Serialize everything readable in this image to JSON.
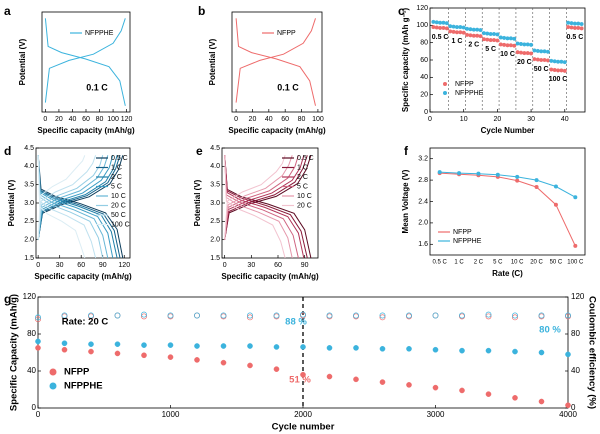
{
  "chart_data": [
    {
      "panel_label": "a",
      "type": "line",
      "xlabel": "Specific capacity (mAh/g)",
      "ylabel": "Potential (V)",
      "xlim": [
        -5,
        125
      ],
      "ylim": [
        1.3,
        4.5
      ],
      "xticks": [
        0,
        20,
        40,
        60,
        80,
        100,
        120
      ],
      "annotations": [
        {
          "text": "0.1 C"
        }
      ],
      "series": [
        {
          "name": "NFPPHE",
          "color": "#3bb3dd",
          "x": [
            0,
            6,
            35,
            71,
            100,
            112,
            118,
            null,
            0,
            4,
            24,
            59,
            94,
            110,
            118
          ],
          "values": [
            1.6,
            2.7,
            2.95,
            3.15,
            3.5,
            3.9,
            4.3,
            null,
            4.3,
            3.4,
            3.2,
            3.0,
            2.75,
            2.3,
            1.5
          ]
        }
      ]
    },
    {
      "panel_label": "b",
      "type": "line",
      "xlabel": "Specific capacity (mAh/g)",
      "ylabel": "Potential (V)",
      "xlim": [
        -5,
        105
      ],
      "ylim": [
        1.3,
        4.5
      ],
      "xticks": [
        0,
        20,
        40,
        60,
        80,
        100
      ],
      "annotations": [
        {
          "text": "0.1 C"
        }
      ],
      "series": [
        {
          "name": "NFPP",
          "color": "#ee6b6b",
          "x": [
            0,
            5,
            29,
            58,
            82,
            92,
            97,
            null,
            0,
            3,
            19,
            49,
            78,
            90,
            97
          ],
          "values": [
            1.6,
            2.7,
            2.95,
            3.15,
            3.5,
            3.9,
            4.3,
            null,
            4.3,
            3.4,
            3.2,
            3.0,
            2.75,
            2.3,
            1.5
          ]
        }
      ]
    },
    {
      "panel_label": "c",
      "type": "scatter",
      "xlabel": "Cycle Number",
      "ylabel": "Specific capacity (mAh g⁻¹)",
      "xlim": [
        0,
        46
      ],
      "ylim": [
        0,
        120
      ],
      "xticks": [
        0,
        10,
        20,
        30,
        40
      ],
      "yticks": [
        0,
        20,
        40,
        60,
        80,
        100,
        120
      ],
      "rate_labels": [
        "0.5 C",
        "1 C",
        "2 C",
        "5 C",
        "10 C",
        "20 C",
        "50 C",
        "100 C",
        "0.5 C"
      ],
      "x": [
        1,
        2,
        3,
        4,
        5,
        6,
        7,
        8,
        9,
        10,
        11,
        12,
        13,
        14,
        15,
        16,
        17,
        18,
        19,
        20,
        21,
        22,
        23,
        24,
        25,
        26,
        27,
        28,
        29,
        30,
        31,
        32,
        33,
        34,
        35,
        36,
        37,
        38,
        39,
        40,
        41,
        42,
        43,
        44,
        45
      ],
      "series": [
        {
          "name": "NFPP",
          "color": "#ee6b6b",
          "values": [
            98,
            97.5,
            97,
            97,
            96.5,
            93,
            92.5,
            92,
            92,
            91.5,
            89,
            88.5,
            88,
            88,
            87.5,
            84,
            83.5,
            83,
            83,
            82.5,
            78,
            77.5,
            77,
            77,
            76.5,
            69,
            68.5,
            68,
            68,
            67.5,
            61,
            60.5,
            60,
            60,
            59.5,
            49,
            48.5,
            48,
            48,
            47.5,
            98,
            97.5,
            97,
            97,
            96.5
          ]
        },
        {
          "name": "NFPPHE",
          "color": "#3bb3dd",
          "values": [
            104,
            103.5,
            103,
            103,
            102.5,
            99,
            98.5,
            98,
            98,
            97.5,
            96,
            95.5,
            95,
            95,
            94.5,
            91,
            90.5,
            90,
            90,
            89.5,
            86,
            85.5,
            85,
            85,
            84.5,
            79,
            78.5,
            78,
            78,
            77.5,
            71,
            70.5,
            70,
            70,
            69.5,
            59,
            58.5,
            58,
            58,
            57.5,
            103,
            102.5,
            102,
            102,
            101.5
          ]
        }
      ]
    },
    {
      "panel_label": "d",
      "type": "line",
      "xlabel": "Specific capacity (mAh/g)",
      "ylabel": "Potential (V)",
      "xlim": [
        -3,
        128
      ],
      "ylim": [
        1.5,
        4.5
      ],
      "xticks": [
        0,
        30,
        60,
        90,
        120
      ],
      "yticks": [
        1.5,
        {
          "value": 2,
          "label": "2.0"
        },
        2.5,
        {
          "value": 3,
          "label": "3.0"
        },
        3.5,
        {
          "value": 4,
          "label": "4.0"
        },
        4.5
      ],
      "series": [
        {
          "name": "0.5 C",
          "color": "#0b3d5c",
          "x": [
            0,
            6,
            35,
            71,
            100,
            112,
            118,
            null,
            0,
            4,
            24,
            59,
            94,
            110,
            118
          ],
          "values": [
            2.0,
            2.72,
            2.97,
            3.17,
            3.52,
            3.91,
            4.3,
            null,
            4.3,
            3.38,
            3.18,
            2.98,
            2.73,
            2.28,
            1.5
          ]
        },
        {
          "name": "1 C",
          "color": "#14628a",
          "x": [
            0,
            6,
            34,
            68,
            97,
            108,
            114,
            null,
            0,
            3,
            23,
            57,
            91,
            106,
            114
          ],
          "values": [
            2.0,
            2.75,
            3.0,
            3.2,
            3.55,
            3.93,
            4.3,
            null,
            4.3,
            3.35,
            3.15,
            2.95,
            2.7,
            2.25,
            1.5
          ]
        },
        {
          "name": "2 C",
          "color": "#1f7fa8",
          "x": [
            0,
            6,
            33,
            66,
            94,
            105,
            110,
            null,
            0,
            3,
            22,
            55,
            88,
            102,
            110
          ],
          "values": [
            2.0,
            2.78,
            3.03,
            3.23,
            3.58,
            3.94,
            4.3,
            null,
            4.3,
            3.32,
            3.12,
            2.92,
            2.67,
            2.22,
            1.5
          ]
        },
        {
          "name": "5 C",
          "color": "#3a9cc4",
          "x": [
            0,
            5,
            31,
            62,
            88,
            99,
            104,
            null,
            0,
            3,
            21,
            52,
            83,
            97,
            104
          ],
          "values": [
            2.0,
            2.82,
            3.07,
            3.27,
            3.62,
            3.96,
            4.3,
            null,
            4.3,
            3.28,
            3.08,
            2.88,
            2.63,
            2.18,
            1.5
          ]
        },
        {
          "name": "10 C",
          "color": "#66b6d6",
          "x": [
            0,
            5,
            29,
            58,
            82,
            92,
            97,
            null,
            0,
            3,
            19,
            49,
            78,
            90,
            97
          ],
          "values": [
            2.0,
            2.88,
            3.13,
            3.33,
            3.68,
            3.99,
            4.3,
            null,
            4.3,
            3.22,
            3.02,
            2.82,
            2.57,
            2.12,
            1.5
          ]
        },
        {
          "name": "20 C",
          "color": "#93cde4",
          "x": [
            0,
            5,
            27,
            54,
            77,
            86,
            90,
            null,
            0,
            3,
            18,
            45,
            72,
            84,
            90
          ],
          "values": [
            2.0,
            2.95,
            3.2,
            3.4,
            3.75,
            4.03,
            4.3,
            null,
            4.3,
            3.15,
            2.95,
            2.75,
            2.5,
            2.05,
            1.5
          ]
        },
        {
          "name": "50 C",
          "color": "#bfe1ef",
          "x": [
            0,
            4,
            24,
            48,
            68,
            76,
            80,
            null,
            0,
            2,
            16,
            40,
            64,
            74,
            80
          ],
          "values": [
            2.0,
            3.05,
            3.3,
            3.5,
            3.85,
            4.08,
            4.3,
            null,
            4.3,
            3.05,
            2.85,
            2.65,
            2.4,
            1.95,
            1.5
          ]
        },
        {
          "name": "100 C",
          "color": "#dcedf4",
          "x": [
            0,
            3,
            20,
            39,
            55,
            62,
            65,
            null,
            0,
            2,
            13,
            33,
            52,
            60,
            65
          ],
          "values": [
            2.0,
            3.2,
            3.45,
            3.65,
            4.0,
            4.15,
            4.3,
            null,
            4.3,
            2.9,
            2.7,
            2.5,
            2.25,
            1.8,
            1.5
          ]
        }
      ]
    },
    {
      "panel_label": "e",
      "type": "line",
      "xlabel": "Specific capacity (mAh/g)",
      "ylabel": "Potential (V)",
      "xlim": [
        -3,
        105
      ],
      "ylim": [
        1.5,
        4.5
      ],
      "xticks": [
        0,
        30,
        60,
        90
      ],
      "yticks": [
        1.5,
        {
          "value": 2,
          "label": "2.0"
        },
        2.5,
        {
          "value": 3,
          "label": "3.0"
        },
        3.5,
        {
          "value": 4,
          "label": "4.0"
        },
        4.5
      ],
      "series": [
        {
          "name": "0.5 C",
          "color": "#5c0a22",
          "x": [
            0,
            5,
            29,
            58,
            82,
            92,
            97,
            null,
            0,
            3,
            19,
            49,
            78,
            90,
            97
          ],
          "values": [
            2.0,
            2.73,
            2.98,
            3.18,
            3.53,
            3.92,
            4.3,
            null,
            4.3,
            3.37,
            3.17,
            2.97,
            2.72,
            2.27,
            1.5
          ]
        },
        {
          "name": "1 C",
          "color": "#8a1a3a",
          "x": [
            0,
            5,
            28,
            56,
            79,
            88,
            93,
            null,
            0,
            3,
            19,
            47,
            74,
            86,
            93
          ],
          "values": [
            2.0,
            2.77,
            3.02,
            3.22,
            3.57,
            3.94,
            4.3,
            null,
            4.3,
            3.33,
            3.13,
            2.93,
            2.68,
            2.23,
            1.5
          ]
        },
        {
          "name": "2 C",
          "color": "#b03457",
          "x": [
            0,
            4,
            27,
            53,
            76,
            85,
            89,
            null,
            0,
            3,
            18,
            45,
            71,
            83,
            89
          ],
          "values": [
            2.0,
            2.82,
            3.07,
            3.27,
            3.62,
            3.96,
            4.3,
            null,
            4.3,
            3.28,
            3.08,
            2.88,
            2.63,
            2.18,
            1.5
          ]
        },
        {
          "name": "5 C",
          "color": "#cf6581",
          "x": [
            0,
            4,
            25,
            50,
            71,
            79,
            83,
            null,
            0,
            2,
            17,
            42,
            66,
            77,
            83
          ],
          "values": [
            2.0,
            2.88,
            3.13,
            3.33,
            3.68,
            3.99,
            4.3,
            null,
            4.3,
            3.22,
            3.02,
            2.82,
            2.57,
            2.12,
            1.5
          ]
        },
        {
          "name": "10 C",
          "color": "#e597ab",
          "x": [
            0,
            4,
            23,
            46,
            65,
            72,
            76,
            null,
            0,
            2,
            15,
            38,
            61,
            71,
            76
          ],
          "values": [
            2.0,
            2.95,
            3.2,
            3.4,
            3.75,
            4.03,
            4.3,
            null,
            4.3,
            3.15,
            2.95,
            2.75,
            2.5,
            2.05,
            1.5
          ]
        },
        {
          "name": "20 C",
          "color": "#f2c3cf",
          "x": [
            0,
            3,
            20,
            41,
            58,
            65,
            68,
            null,
            0,
            2,
            14,
            34,
            54,
            63,
            68
          ],
          "values": [
            2.0,
            3.05,
            3.3,
            3.5,
            3.85,
            4.08,
            4.3,
            null,
            4.3,
            3.05,
            2.85,
            2.65,
            2.4,
            1.95,
            1.5
          ]
        }
      ]
    },
    {
      "panel_label": "f",
      "type": "line",
      "markers": true,
      "xlabel": "Rate (C)",
      "ylabel": "Mean Voltage (V)",
      "categories": [
        "0.5 C",
        "1 C",
        "2 C",
        "5 C",
        "10 C",
        "20 C",
        "50 C",
        "100 C"
      ],
      "ylim": [
        1.4,
        3.4
      ],
      "yticks": [
        1.6,
        {
          "value": 2,
          "label": "2.0"
        },
        2.4,
        2.8,
        3.2
      ],
      "series": [
        {
          "name": "NFPP",
          "color": "#ee6b6b",
          "values": [
            2.93,
            2.91,
            2.89,
            2.86,
            2.79,
            2.67,
            2.34,
            1.57
          ]
        },
        {
          "name": "NFPPHE",
          "color": "#3bb3dd",
          "values": [
            2.95,
            2.93,
            2.92,
            2.9,
            2.86,
            2.8,
            2.68,
            2.48
          ]
        }
      ]
    },
    {
      "panel_label": "g",
      "type": "scatter",
      "xlabel": "Cycle number",
      "ylabel": "Specific Capacity (mAh/g)",
      "y2label": "Coulombic efficiency (%)",
      "xlim": [
        0,
        4000
      ],
      "ylim": [
        0,
        120
      ],
      "y2lim": [
        0,
        120
      ],
      "xticks": [
        0,
        1000,
        2000,
        3000,
        4000
      ],
      "yticks": [
        0,
        40,
        80,
        120
      ],
      "y2ticks": [
        0,
        40,
        80,
        120
      ],
      "vlines": [
        2000
      ],
      "annotations": [
        {
          "text": "Rate: 20 C",
          "color": "#000000"
        },
        {
          "text": "88 %",
          "color": "#3bb3dd"
        },
        {
          "text": "80 %",
          "color": "#3bb3dd"
        },
        {
          "text": "51 %",
          "color": "#ee6b6b"
        }
      ],
      "x": [
        0,
        200,
        400,
        600,
        800,
        1000,
        1200,
        1400,
        1600,
        1800,
        2000,
        2200,
        2400,
        2600,
        2800,
        3000,
        3200,
        3400,
        3600,
        3800,
        4000
      ],
      "series": [
        {
          "name": "NFPP",
          "color": "#ee6b6b",
          "values": [
            65,
            63,
            61,
            59,
            57,
            55,
            52,
            49,
            46,
            42,
            36,
            34,
            31,
            28,
            25,
            22,
            19,
            15,
            11,
            7,
            3
          ]
        },
        {
          "name": "NFPPHE",
          "color": "#3bb3dd",
          "values": [
            72,
            70,
            69,
            69,
            68,
            68,
            67,
            67,
            67,
            66,
            66,
            65,
            65,
            64,
            64,
            63,
            62,
            62,
            61,
            60,
            58
          ]
        },
        {
          "color": "#ee6b6b",
          "axis": "y2",
          "marker": "hollow",
          "values": [
            96,
            99,
            99,
            100,
            99,
            99,
            100,
            99,
            98,
            99,
            100,
            99,
            99,
            98,
            99,
            100,
            99,
            99,
            98,
            99,
            99
          ]
        },
        {
          "color": "#3bb3dd",
          "axis": "y2",
          "marker": "hollow",
          "values": [
            98,
            100,
            100,
            100,
            101,
            100,
            100,
            100,
            100,
            100,
            101,
            100,
            100,
            100,
            100,
            100,
            100,
            101,
            100,
            100,
            100
          ]
        }
      ]
    }
  ]
}
